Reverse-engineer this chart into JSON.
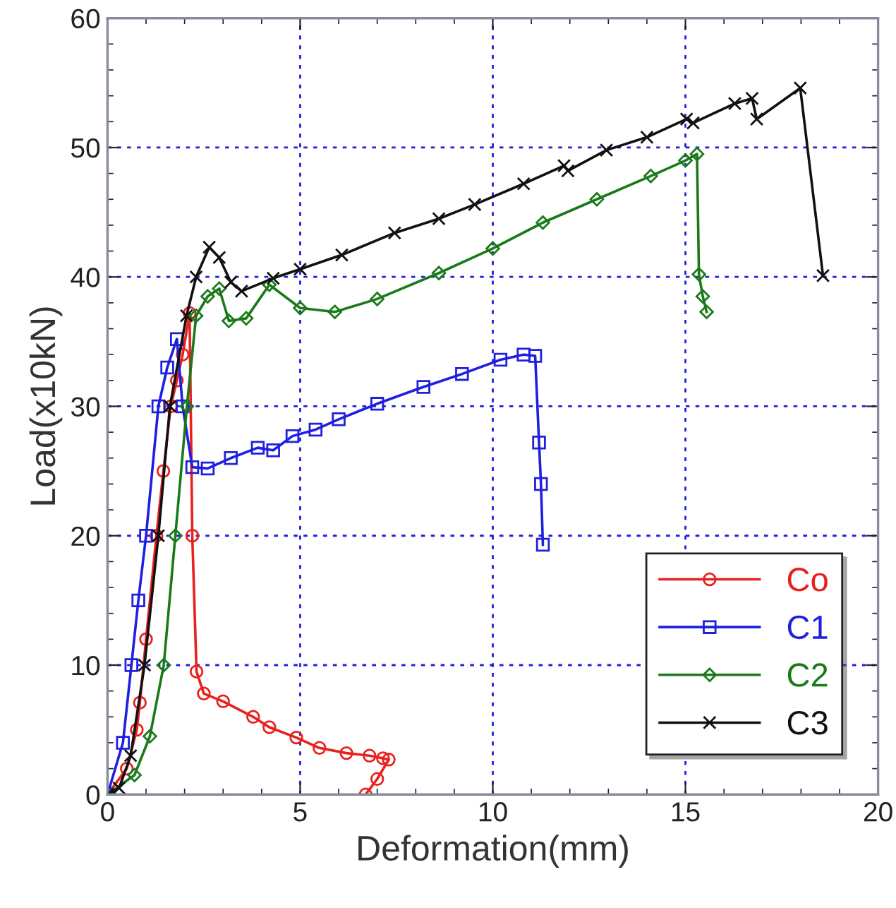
{
  "chart_data": {
    "type": "line",
    "xlabel": "Deformation(mm)",
    "ylabel": "Load(x10kN)",
    "xlim": [
      0,
      20
    ],
    "ylim": [
      0,
      60
    ],
    "xticks": [
      0,
      5,
      10,
      15,
      20
    ],
    "yticks": [
      0,
      10,
      20,
      30,
      40,
      50,
      60
    ],
    "grid": true,
    "legend": "bottom right",
    "line_style": "solid",
    "series": [
      {
        "name": "Co",
        "color": "#e8211f",
        "marker": "circle",
        "x": [
          0,
          0.5,
          0.76,
          0.84,
          1.0,
          1.27,
          1.45,
          1.64,
          1.8,
          1.95,
          2.13,
          2.2,
          2.31,
          2.5,
          3.0,
          3.78,
          4.2,
          4.9,
          5.5,
          6.2,
          6.8,
          7.15,
          7.3,
          7.0,
          6.7
        ],
        "values": [
          0,
          2,
          5,
          7.1,
          12,
          20,
          25,
          30,
          32,
          34,
          37.2,
          20,
          9.5,
          7.8,
          7.2,
          6.0,
          5.2,
          4.4,
          3.6,
          3.2,
          3.0,
          2.8,
          2.7,
          1.2,
          0
        ]
      },
      {
        "name": "C1",
        "color": "#1f1fe0",
        "marker": "square",
        "x": [
          0,
          0.4,
          0.62,
          0.8,
          1.0,
          1.32,
          1.55,
          1.8,
          1.95,
          2.2,
          2.6,
          3.2,
          3.9,
          4.3,
          4.8,
          5.4,
          6.0,
          7.0,
          8.2,
          9.2,
          10.2,
          10.8,
          11.1,
          11.2,
          11.25,
          11.3
        ],
        "values": [
          0,
          4,
          10,
          15,
          20,
          30,
          33,
          35.2,
          30,
          25.3,
          25.2,
          26.0,
          26.8,
          26.6,
          27.7,
          28.2,
          29.0,
          30.2,
          31.5,
          32.5,
          33.6,
          34.0,
          33.9,
          27.2,
          24,
          19.3
        ]
      },
      {
        "name": "C2",
        "color": "#1a7a1a",
        "marker": "diamond",
        "x": [
          0,
          0.7,
          1.1,
          1.46,
          1.76,
          2.06,
          2.3,
          2.6,
          2.9,
          3.15,
          3.6,
          4.2,
          5.0,
          5.9,
          7.0,
          8.6,
          10.0,
          11.3,
          12.7,
          14.1,
          15.0,
          15.3,
          15.35,
          15.45,
          15.55
        ],
        "values": [
          0,
          1.5,
          4.5,
          10,
          20,
          30,
          37,
          38.5,
          39.1,
          36.6,
          36.8,
          39.4,
          37.6,
          37.3,
          38.3,
          40.3,
          42.2,
          44.2,
          46.0,
          47.8,
          49.0,
          49.5,
          40.2,
          38.5,
          37.3
        ]
      },
      {
        "name": "C3",
        "color": "#111111",
        "marker": "cross",
        "x": [
          0,
          0.3,
          0.6,
          0.96,
          1.32,
          1.62,
          2.05,
          2.3,
          2.64,
          2.9,
          3.2,
          3.48,
          4.3,
          5.0,
          6.08,
          7.45,
          8.6,
          9.53,
          10.8,
          11.85,
          11.95,
          12.95,
          14.0,
          15.03,
          15.2,
          16.28,
          16.73,
          16.85,
          17.98,
          18.57
        ],
        "values": [
          0,
          0.5,
          3,
          10,
          20,
          30,
          37,
          40,
          42.3,
          41.5,
          39.6,
          38.9,
          39.9,
          40.6,
          41.7,
          43.4,
          44.5,
          45.6,
          47.2,
          48.6,
          48.2,
          49.8,
          50.8,
          52.2,
          51.9,
          53.4,
          53.8,
          52.2,
          54.6,
          40.1
        ]
      }
    ]
  }
}
